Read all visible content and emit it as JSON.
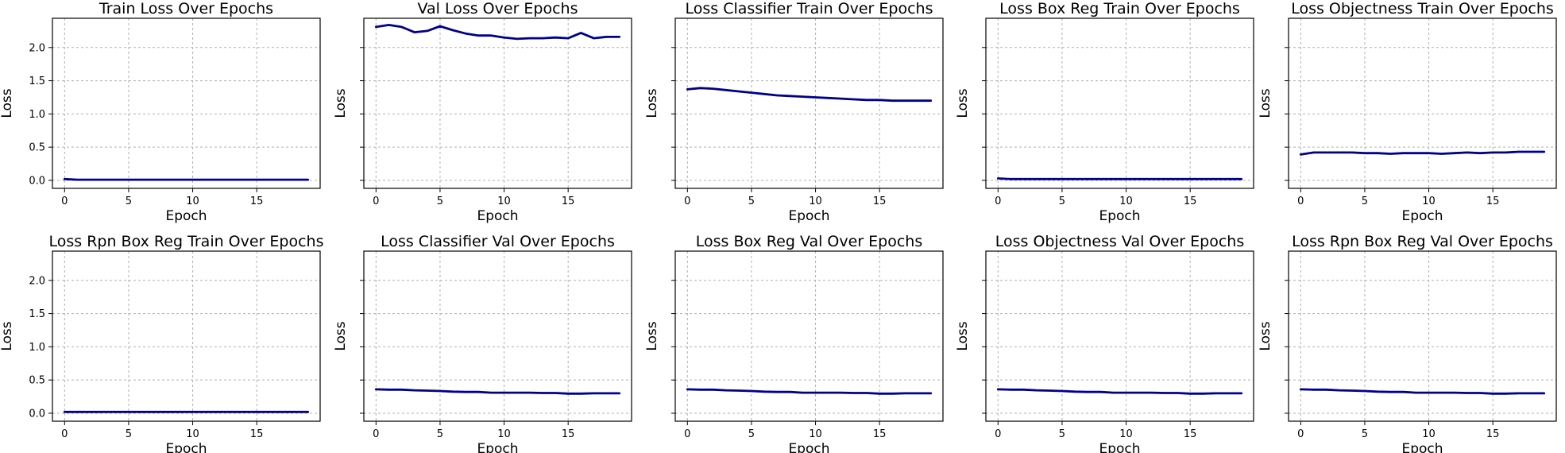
{
  "figure": {
    "line_color": "#00008b",
    "sharey": true
  },
  "chart_data": [
    {
      "type": "line",
      "title": "Train Loss Over Epochs",
      "xlabel": "Epoch",
      "ylabel": "Loss",
      "grid": true,
      "xlim": [
        -0.95,
        19.95
      ],
      "ylim": [
        -0.12,
        2.44
      ],
      "xticks": [
        0,
        5,
        10,
        15
      ],
      "yticks": [
        0.0,
        0.5,
        1.0,
        1.5,
        2.0
      ],
      "x": [
        0,
        1,
        2,
        3,
        4,
        5,
        6,
        7,
        8,
        9,
        10,
        11,
        12,
        13,
        14,
        15,
        16,
        17,
        18,
        19
      ],
      "y": [
        0.02,
        0.01,
        0.01,
        0.01,
        0.01,
        0.01,
        0.01,
        0.01,
        0.01,
        0.01,
        0.01,
        0.01,
        0.01,
        0.01,
        0.01,
        0.01,
        0.01,
        0.01,
        0.01,
        0.01
      ]
    },
    {
      "type": "line",
      "title": "Val Loss Over Epochs",
      "xlabel": "Epoch",
      "ylabel": "Loss",
      "grid": true,
      "xlim": [
        -0.95,
        19.95
      ],
      "ylim": [
        -0.12,
        2.44
      ],
      "xticks": [
        0,
        5,
        10,
        15
      ],
      "yticks": [
        0.0,
        0.5,
        1.0,
        1.5,
        2.0
      ],
      "x": [
        0,
        1,
        2,
        3,
        4,
        5,
        6,
        7,
        8,
        9,
        10,
        11,
        12,
        13,
        14,
        15,
        16,
        17,
        18,
        19
      ],
      "y": [
        2.31,
        2.34,
        2.31,
        2.23,
        2.25,
        2.32,
        2.26,
        2.21,
        2.18,
        2.18,
        2.15,
        2.13,
        2.14,
        2.14,
        2.15,
        2.14,
        2.22,
        2.14,
        2.16,
        2.16
      ]
    },
    {
      "type": "line",
      "title": "Loss Classifier Train Over Epochs",
      "xlabel": "Epoch",
      "ylabel": "Loss",
      "grid": true,
      "xlim": [
        -0.95,
        19.95
      ],
      "ylim": [
        -0.12,
        2.44
      ],
      "xticks": [
        0,
        5,
        10,
        15
      ],
      "yticks": [
        0.0,
        0.5,
        1.0,
        1.5,
        2.0
      ],
      "x": [
        0,
        1,
        2,
        3,
        4,
        5,
        6,
        7,
        8,
        9,
        10,
        11,
        12,
        13,
        14,
        15,
        16,
        17,
        18,
        19
      ],
      "y": [
        1.37,
        1.39,
        1.38,
        1.36,
        1.34,
        1.32,
        1.3,
        1.28,
        1.27,
        1.26,
        1.25,
        1.24,
        1.23,
        1.22,
        1.21,
        1.21,
        1.2,
        1.2,
        1.2,
        1.2
      ]
    },
    {
      "type": "line",
      "title": "Loss Box Reg Train Over Epochs",
      "xlabel": "Epoch",
      "ylabel": "Loss",
      "grid": true,
      "xlim": [
        -0.95,
        19.95
      ],
      "ylim": [
        -0.12,
        2.44
      ],
      "xticks": [
        0,
        5,
        10,
        15
      ],
      "yticks": [
        0.0,
        0.5,
        1.0,
        1.5,
        2.0
      ],
      "x": [
        0,
        1,
        2,
        3,
        4,
        5,
        6,
        7,
        8,
        9,
        10,
        11,
        12,
        13,
        14,
        15,
        16,
        17,
        18,
        19
      ],
      "y": [
        0.03,
        0.02,
        0.02,
        0.02,
        0.02,
        0.02,
        0.02,
        0.02,
        0.02,
        0.02,
        0.02,
        0.02,
        0.02,
        0.02,
        0.02,
        0.02,
        0.02,
        0.02,
        0.02,
        0.02
      ]
    },
    {
      "type": "line",
      "title": "Loss Objectness Train Over Epochs",
      "xlabel": "Epoch",
      "ylabel": "Loss",
      "grid": true,
      "xlim": [
        -0.95,
        19.95
      ],
      "ylim": [
        -0.12,
        2.44
      ],
      "xticks": [
        0,
        5,
        10,
        15
      ],
      "yticks": [
        0.0,
        0.5,
        1.0,
        1.5,
        2.0
      ],
      "x": [
        0,
        1,
        2,
        3,
        4,
        5,
        6,
        7,
        8,
        9,
        10,
        11,
        12,
        13,
        14,
        15,
        16,
        17,
        18,
        19
      ],
      "y": [
        0.39,
        0.42,
        0.42,
        0.42,
        0.42,
        0.41,
        0.41,
        0.4,
        0.41,
        0.41,
        0.41,
        0.4,
        0.41,
        0.42,
        0.41,
        0.42,
        0.42,
        0.43,
        0.43,
        0.43
      ]
    },
    {
      "type": "line",
      "title": "Loss Rpn Box Reg Train Over Epochs",
      "xlabel": "Epoch",
      "ylabel": "Loss",
      "grid": true,
      "xlim": [
        -0.95,
        19.95
      ],
      "ylim": [
        -0.12,
        2.44
      ],
      "xticks": [
        0,
        5,
        10,
        15
      ],
      "yticks": [
        0.0,
        0.5,
        1.0,
        1.5,
        2.0
      ],
      "x": [
        0,
        1,
        2,
        3,
        4,
        5,
        6,
        7,
        8,
        9,
        10,
        11,
        12,
        13,
        14,
        15,
        16,
        17,
        18,
        19
      ],
      "y": [
        0.02,
        0.02,
        0.02,
        0.02,
        0.02,
        0.02,
        0.02,
        0.02,
        0.02,
        0.02,
        0.02,
        0.02,
        0.02,
        0.02,
        0.02,
        0.02,
        0.02,
        0.02,
        0.02,
        0.02
      ]
    },
    {
      "type": "line",
      "title": "Loss Classifier Val Over Epochs",
      "xlabel": "Epoch",
      "ylabel": "Loss",
      "grid": true,
      "xlim": [
        -0.95,
        19.95
      ],
      "ylim": [
        -0.12,
        2.44
      ],
      "xticks": [
        0,
        5,
        10,
        15
      ],
      "yticks": [
        0.0,
        0.5,
        1.0,
        1.5,
        2.0
      ],
      "x": [
        0,
        1,
        2,
        3,
        4,
        5,
        6,
        7,
        8,
        9,
        10,
        11,
        12,
        13,
        14,
        15,
        16,
        17,
        18,
        19
      ],
      "y": [
        0.36,
        0.355,
        0.355,
        0.345,
        0.34,
        0.335,
        0.325,
        0.32,
        0.32,
        0.31,
        0.31,
        0.31,
        0.31,
        0.305,
        0.305,
        0.295,
        0.295,
        0.3,
        0.3,
        0.3
      ]
    },
    {
      "type": "line",
      "title": "Loss Box Reg Val Over Epochs",
      "xlabel": "Epoch",
      "ylabel": "Loss",
      "grid": true,
      "xlim": [
        -0.95,
        19.95
      ],
      "ylim": [
        -0.12,
        2.44
      ],
      "xticks": [
        0,
        5,
        10,
        15
      ],
      "yticks": [
        0.0,
        0.5,
        1.0,
        1.5,
        2.0
      ],
      "x": [
        0,
        1,
        2,
        3,
        4,
        5,
        6,
        7,
        8,
        9,
        10,
        11,
        12,
        13,
        14,
        15,
        16,
        17,
        18,
        19
      ],
      "y": [
        0.36,
        0.355,
        0.355,
        0.345,
        0.34,
        0.335,
        0.325,
        0.32,
        0.32,
        0.31,
        0.31,
        0.31,
        0.31,
        0.305,
        0.305,
        0.295,
        0.295,
        0.3,
        0.3,
        0.3
      ]
    },
    {
      "type": "line",
      "title": "Loss Objectness Val Over Epochs",
      "xlabel": "Epoch",
      "ylabel": "Loss",
      "grid": true,
      "xlim": [
        -0.95,
        19.95
      ],
      "ylim": [
        -0.12,
        2.44
      ],
      "xticks": [
        0,
        5,
        10,
        15
      ],
      "yticks": [
        0.0,
        0.5,
        1.0,
        1.5,
        2.0
      ],
      "x": [
        0,
        1,
        2,
        3,
        4,
        5,
        6,
        7,
        8,
        9,
        10,
        11,
        12,
        13,
        14,
        15,
        16,
        17,
        18,
        19
      ],
      "y": [
        0.36,
        0.355,
        0.355,
        0.345,
        0.34,
        0.335,
        0.325,
        0.32,
        0.32,
        0.31,
        0.31,
        0.31,
        0.31,
        0.305,
        0.305,
        0.295,
        0.295,
        0.3,
        0.3,
        0.3
      ]
    },
    {
      "type": "line",
      "title": "Loss Rpn Box Reg Val Over Epochs",
      "xlabel": "Epoch",
      "ylabel": "Loss",
      "grid": true,
      "xlim": [
        -0.95,
        19.95
      ],
      "ylim": [
        -0.12,
        2.44
      ],
      "xticks": [
        0,
        5,
        10,
        15
      ],
      "yticks": [
        0.0,
        0.5,
        1.0,
        1.5,
        2.0
      ],
      "x": [
        0,
        1,
        2,
        3,
        4,
        5,
        6,
        7,
        8,
        9,
        10,
        11,
        12,
        13,
        14,
        15,
        16,
        17,
        18,
        19
      ],
      "y": [
        0.36,
        0.355,
        0.355,
        0.345,
        0.34,
        0.335,
        0.325,
        0.32,
        0.32,
        0.31,
        0.31,
        0.31,
        0.31,
        0.305,
        0.305,
        0.295,
        0.295,
        0.3,
        0.3,
        0.3
      ]
    }
  ]
}
